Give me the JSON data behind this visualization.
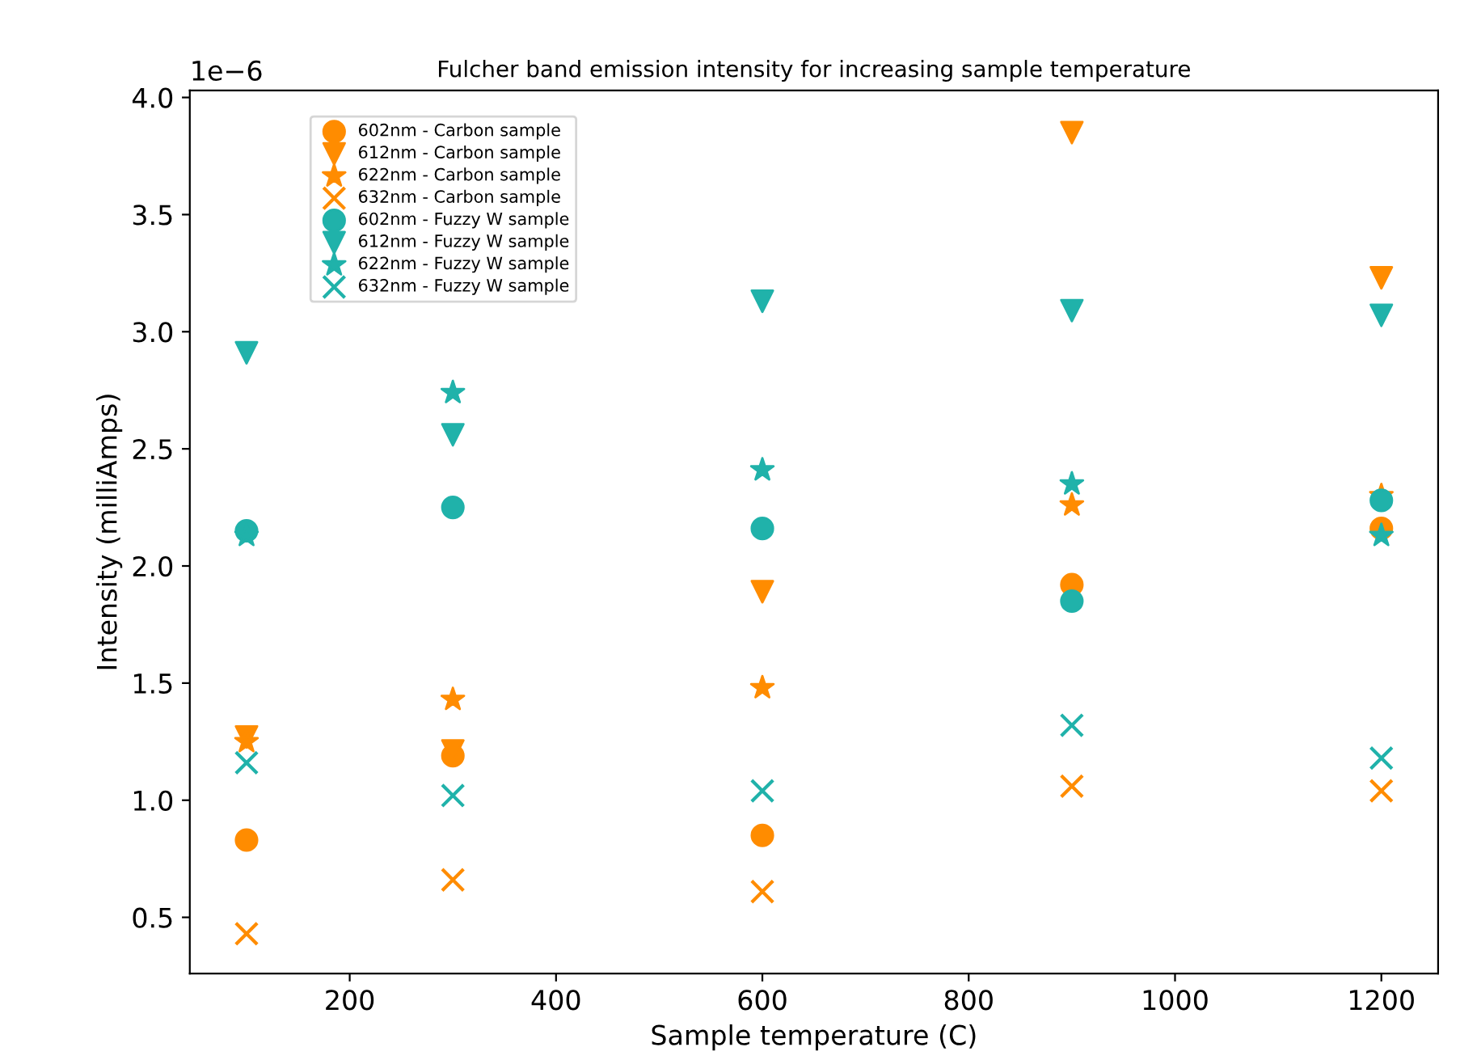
{
  "chart_data": {
    "type": "scatter",
    "title": "Fulcher band emission intensity for increasing sample temperature",
    "xlabel": "Sample temperature (C)",
    "ylabel": "Intensity (milliAmps)",
    "annotations": [
      "1e−6"
    ],
    "x": [
      100,
      300,
      600,
      900,
      1200
    ],
    "xlim": [
      45,
      1255
    ],
    "xticks": [
      200,
      400,
      600,
      800,
      1000,
      1200
    ],
    "ylim": [
      0.26,
      4.03
    ],
    "yticks": [
      0.5,
      {
        "value": 1,
        "label": "1.0"
      },
      1.5,
      {
        "value": 2,
        "label": "2.0"
      },
      2.5,
      {
        "value": 3,
        "label": "3.0"
      },
      3.5,
      {
        "value": 4,
        "label": "4.0"
      }
    ],
    "grid": false,
    "legend": "top left",
    "series": [
      {
        "name": "602nm - Carbon sample",
        "color": "#ff8c00",
        "marker": "circle",
        "values": [
          0.83,
          1.19,
          0.85,
          1.92,
          2.16
        ]
      },
      {
        "name": "612nm - Carbon sample",
        "color": "#ff8c00",
        "marker": "triangle",
        "values": [
          1.27,
          1.21,
          1.89,
          3.85,
          3.23
        ]
      },
      {
        "name": "622nm - Carbon sample",
        "color": "#ff8c00",
        "marker": "star",
        "values": [
          1.25,
          1.43,
          1.48,
          2.26,
          2.3
        ]
      },
      {
        "name": "632nm - Carbon sample",
        "color": "#ff8c00",
        "marker": "cross",
        "values": [
          0.43,
          0.66,
          0.61,
          1.06,
          1.04
        ]
      },
      {
        "name": "602nm - Fuzzy W sample",
        "color": "#20b2aa",
        "marker": "circle",
        "values": [
          2.15,
          2.25,
          2.16,
          1.85,
          2.28
        ]
      },
      {
        "name": "612nm - Fuzzy W sample",
        "color": "#20b2aa",
        "marker": "triangle",
        "values": [
          2.91,
          2.56,
          3.13,
          3.09,
          3.07
        ]
      },
      {
        "name": "622nm - Fuzzy W sample",
        "color": "#20b2aa",
        "marker": "star",
        "values": [
          2.13,
          2.74,
          2.41,
          2.35,
          2.13
        ]
      },
      {
        "name": "632nm - Fuzzy W sample",
        "color": "#20b2aa",
        "marker": "cross",
        "values": [
          1.16,
          1.02,
          1.04,
          1.32,
          1.18
        ]
      }
    ]
  }
}
